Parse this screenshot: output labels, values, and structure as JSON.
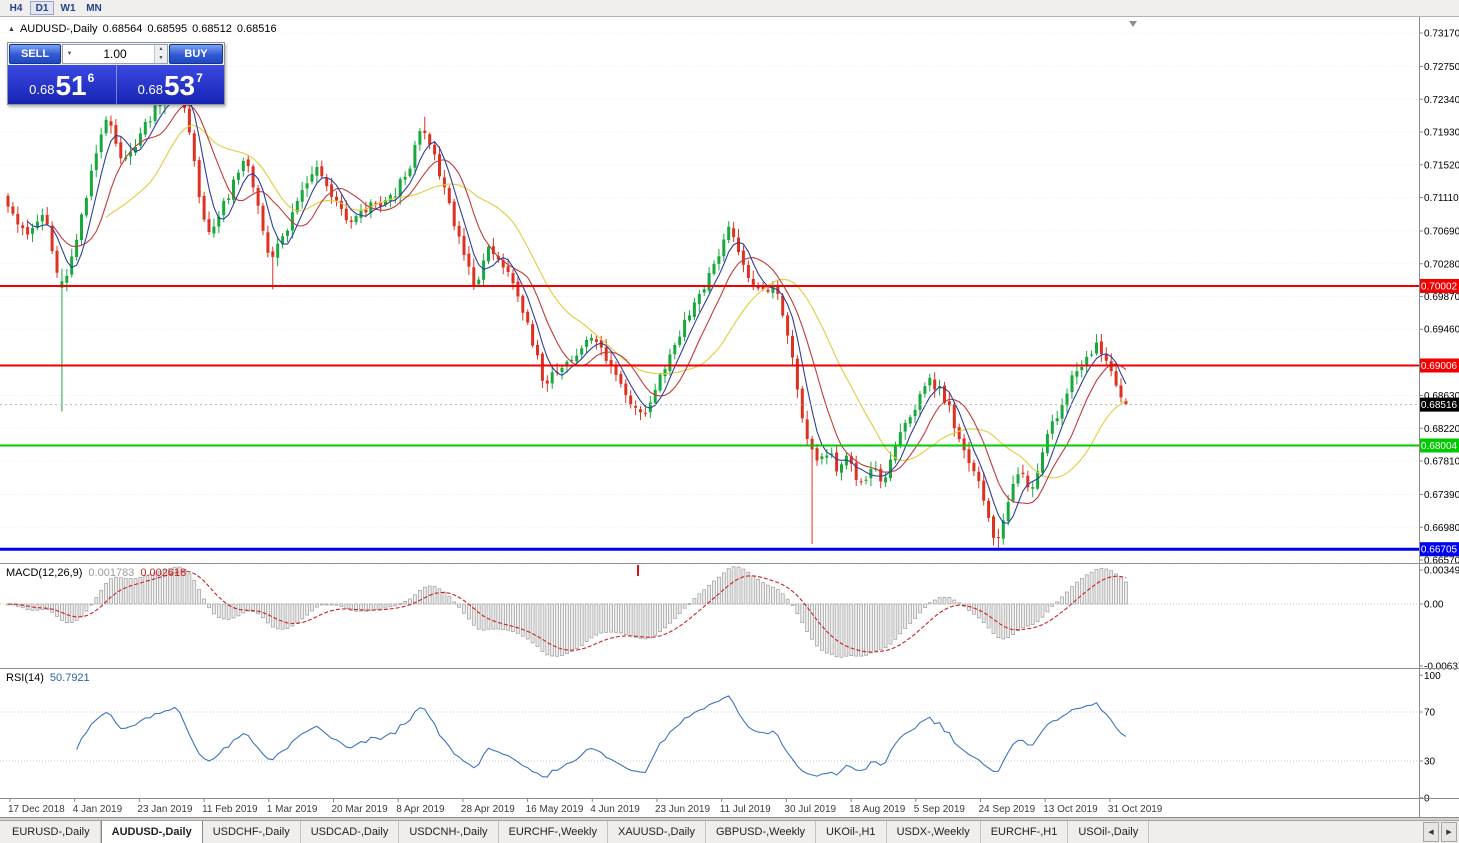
{
  "toolbar": {
    "timeframes": [
      "H4",
      "D1",
      "W1",
      "MN"
    ],
    "active_timeframe": "D1"
  },
  "icons": {
    "expand_caret": "▲",
    "volume_dropdown": "▼",
    "spin_up": "▲",
    "spin_down": "▼",
    "tab_scroll_left": "◀",
    "tab_scroll_right": "▶"
  },
  "chart": {
    "header": {
      "title": "AUDUSD-,Daily",
      "open": "0.68564",
      "high": "0.68595",
      "low": "0.68512",
      "close": "0.68516"
    },
    "trade_panel": {
      "sell_label": "SELL",
      "buy_label": "BUY",
      "volume": "1.00",
      "sell_price_prefix": "0.68",
      "sell_price_big": "51",
      "sell_price_sup": "6",
      "buy_price_prefix": "0.68",
      "buy_price_big": "53",
      "buy_price_sup": "7"
    },
    "price_axis_ticks": [
      "0.73170",
      "0.72750",
      "0.72340",
      "0.71930",
      "0.71520",
      "0.71110",
      "0.70690",
      "0.70280",
      "0.69870",
      "0.69460",
      "0.68630",
      "0.68220",
      "0.67810",
      "0.67390",
      "0.66980",
      "0.66570"
    ],
    "date_axis_ticks": [
      "17 Dec 2018",
      "4 Jan 2019",
      "23 Jan 2019",
      "11 Feb 2019",
      "1 Mar 2019",
      "20 Mar 2019",
      "8 Apr 2019",
      "28 Apr 2019",
      "16 May 2019",
      "4 Jun 2019",
      "23 Jun 2019",
      "11 Jul 2019",
      "30 Jul 2019",
      "18 Aug 2019",
      "5 Sep 2019",
      "24 Sep 2019",
      "13 Oct 2019",
      "31 Oct 2019"
    ]
  },
  "chart_data": {
    "type": "candlestick",
    "symbol": "AUDUSD",
    "timeframe": "Daily",
    "bars": 229,
    "price_range": {
      "max": 0.7317,
      "min": 0.6657
    },
    "last_candle": {
      "open": 0.68564,
      "high": 0.68595,
      "low": 0.68512,
      "close": 0.68516
    },
    "current_price": {
      "value": 0.68516,
      "label": "0.68516"
    },
    "hlines": [
      {
        "price": 0.70002,
        "label": "0.70002",
        "color": "#f20000",
        "thickness": 2
      },
      {
        "price": 0.69006,
        "label": "0.69006",
        "color": "#f20000",
        "thickness": 2
      },
      {
        "price": 0.68004,
        "label": "0.68004",
        "color": "#00ca00",
        "thickness": 2
      },
      {
        "price": 0.66705,
        "label": "0.66705",
        "color": "#0000f0",
        "thickness": 3
      }
    ],
    "moving_averages": [
      {
        "period": 21,
        "color": "#e3cc3e"
      },
      {
        "period": 10,
        "color": "#c23a3a"
      },
      {
        "period": 5,
        "color": "#2e3f9e"
      }
    ],
    "colors": {
      "up": "#17a93e",
      "down": "#dd3222",
      "background": "#ffffff"
    },
    "price_path_anchors": [
      [
        0,
        0.7112
      ],
      [
        4,
        0.706
      ],
      [
        8,
        0.7092
      ],
      [
        10,
        0.703
      ],
      [
        11,
        0.6992
      ],
      [
        14,
        0.7042
      ],
      [
        19,
        0.718
      ],
      [
        21,
        0.7218
      ],
      [
        24,
        0.715
      ],
      [
        27,
        0.7185
      ],
      [
        31,
        0.723
      ],
      [
        35,
        0.7258
      ],
      [
        38,
        0.718
      ],
      [
        40,
        0.709
      ],
      [
        42,
        0.7068
      ],
      [
        46,
        0.712
      ],
      [
        49,
        0.716
      ],
      [
        52,
        0.709
      ],
      [
        54,
        0.7028
      ],
      [
        58,
        0.708
      ],
      [
        63,
        0.715
      ],
      [
        67,
        0.711
      ],
      [
        70,
        0.7075
      ],
      [
        74,
        0.7098
      ],
      [
        79,
        0.711
      ],
      [
        83,
        0.716
      ],
      [
        85,
        0.72
      ],
      [
        88,
        0.715
      ],
      [
        91,
        0.709
      ],
      [
        94,
        0.703
      ],
      [
        96,
        0.7
      ],
      [
        99,
        0.7052
      ],
      [
        102,
        0.702
      ],
      [
        106,
        0.6958
      ],
      [
        110,
        0.6878
      ],
      [
        113,
        0.6897
      ],
      [
        117,
        0.6922
      ],
      [
        120,
        0.6935
      ],
      [
        124,
        0.6893
      ],
      [
        127,
        0.686
      ],
      [
        130,
        0.684
      ],
      [
        133,
        0.688
      ],
      [
        137,
        0.6935
      ],
      [
        141,
        0.6985
      ],
      [
        144,
        0.702
      ],
      [
        146,
        0.7048
      ],
      [
        148,
        0.7078
      ],
      [
        150,
        0.703
      ],
      [
        154,
        0.6988
      ],
      [
        157,
        0.7
      ],
      [
        159,
        0.695
      ],
      [
        161,
        0.689
      ],
      [
        163,
        0.682
      ],
      [
        165,
        0.678
      ],
      [
        168,
        0.6795
      ],
      [
        170,
        0.6765
      ],
      [
        172,
        0.679
      ],
      [
        174,
        0.6745
      ],
      [
        177,
        0.6775
      ],
      [
        179,
        0.6755
      ],
      [
        181,
        0.6785
      ],
      [
        183,
        0.682
      ],
      [
        186,
        0.6855
      ],
      [
        188,
        0.6885
      ],
      [
        190,
        0.6875
      ],
      [
        192,
        0.6855
      ],
      [
        194,
        0.682
      ],
      [
        197,
        0.677
      ],
      [
        199,
        0.6745
      ],
      [
        200,
        0.671
      ],
      [
        202,
        0.6682
      ],
      [
        205,
        0.674
      ],
      [
        207,
        0.677
      ],
      [
        209,
        0.6745
      ],
      [
        212,
        0.68
      ],
      [
        215,
        0.6848
      ],
      [
        218,
        0.6888
      ],
      [
        221,
        0.6912
      ],
      [
        223,
        0.6928
      ],
      [
        225,
        0.6898
      ],
      [
        226,
        0.6882
      ],
      [
        227,
        0.6868
      ],
      [
        228,
        0.6852
      ]
    ],
    "wick_overrides": [
      {
        "i": 11,
        "o": 0.6998,
        "c": 0.7006,
        "l": 0.6843
      },
      {
        "i": 35,
        "h": 0.7266
      },
      {
        "i": 54,
        "l": 0.6996
      },
      {
        "i": 85,
        "h": 0.7212
      },
      {
        "i": 164,
        "l": 0.6677
      },
      {
        "i": 202,
        "l": 0.667
      }
    ]
  },
  "macd": {
    "label": "MACD(12,26,9)",
    "main_value": "0.001783",
    "signal_value": "0.002618",
    "params": {
      "fast": 12,
      "slow": 26,
      "signal": 9
    },
    "axis_ticks": [
      "0.00349",
      "0.00",
      "-0.00637"
    ],
    "colors": {
      "histogram": "#9c9c9c",
      "signal": "#cc2222"
    }
  },
  "rsi": {
    "label": "RSI(14)",
    "value": "50.7921",
    "period": 14,
    "axis_ticks": [
      "100",
      "70",
      "30",
      "0"
    ],
    "levels": [
      70,
      30
    ],
    "color": "#3b76c0"
  },
  "tabs": {
    "items": [
      "EURUSD-,Daily",
      "AUDUSD-,Daily",
      "USDCHF-,Daily",
      "USDCAD-,Daily",
      "USDCNH-,Daily",
      "EURCHF-,Weekly",
      "XAUUSD-,Daily",
      "GBPUSD-,Weekly",
      "UKOil-,H1",
      "USDX-,Weekly",
      "EURCHF-,H1",
      "USOil-,Daily"
    ],
    "active": "AUDUSD-,Daily"
  }
}
